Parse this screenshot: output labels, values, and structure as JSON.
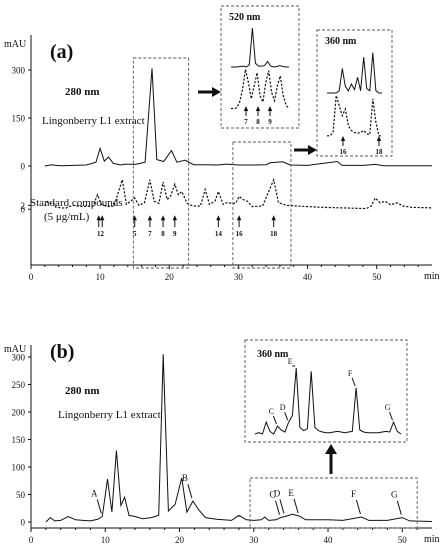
{
  "chart_data": [
    {
      "type": "line",
      "panel_label": "(a)",
      "yunit": "mAU",
      "x_unit": "min",
      "xlim": [
        0,
        58
      ],
      "xticks": [
        0,
        10,
        20,
        30,
        40,
        50
      ],
      "yticks": [
        0,
        150,
        300
      ],
      "ylim": [
        0,
        330
      ],
      "series": [
        {
          "name": "Lingonberry L1 extract",
          "wavelength": "280 nm",
          "offset": 0,
          "points": [
            [
              2,
              0
            ],
            [
              3,
              4
            ],
            [
              3.6,
              2
            ],
            [
              4.5,
              1
            ],
            [
              6,
              2
            ],
            [
              8,
              3
            ],
            [
              9.4,
              12
            ],
            [
              10,
              55
            ],
            [
              10.6,
              15
            ],
            [
              11.2,
              28
            ],
            [
              11.9,
              8
            ],
            [
              13,
              3
            ],
            [
              13.6,
              6
            ],
            [
              15,
              5
            ],
            [
              15.8,
              8
            ],
            [
              16.5,
              12
            ],
            [
              17.5,
              305
            ],
            [
              18.2,
              20
            ],
            [
              19.2,
              14
            ],
            [
              20.3,
              48
            ],
            [
              21.1,
              12
            ],
            [
              22.3,
              18
            ],
            [
              23.5,
              4
            ],
            [
              25,
              4
            ],
            [
              27,
              3
            ],
            [
              28.2,
              6
            ],
            [
              30,
              3
            ],
            [
              32,
              3
            ],
            [
              34,
              4
            ],
            [
              34.6,
              10
            ],
            [
              36.4,
              13
            ],
            [
              37.5,
              3
            ],
            [
              40,
              2
            ],
            [
              44.3,
              14
            ],
            [
              45,
              2
            ],
            [
              48,
              2
            ],
            [
              49.8,
              5
            ],
            [
              51,
              1
            ],
            [
              58,
              1
            ]
          ]
        },
        {
          "name": "Standard compounds (5 μg/mL)",
          "offset": -135,
          "points": [
            [
              2,
              10
            ],
            [
              2.4,
              24
            ],
            [
              2.8,
              18
            ],
            [
              3.2,
              20
            ],
            [
              3.6,
              6
            ],
            [
              5,
              3
            ],
            [
              6,
              12
            ],
            [
              7.5,
              8
            ],
            [
              9,
              10
            ],
            [
              9.6,
              45
            ],
            [
              10.2,
              15
            ],
            [
              11,
              8
            ],
            [
              12,
              10
            ],
            [
              13.2,
              92
            ],
            [
              13.8,
              15
            ],
            [
              15,
              35
            ],
            [
              15.6,
              12
            ],
            [
              16.4,
              20
            ],
            [
              17.2,
              92
            ],
            [
              17.8,
              25
            ],
            [
              18.5,
              18
            ],
            [
              19.1,
              85
            ],
            [
              19.7,
              30
            ],
            [
              20.2,
              42
            ],
            [
              20.8,
              78
            ],
            [
              21.3,
              45
            ],
            [
              21.8,
              55
            ],
            [
              22.6,
              18
            ],
            [
              23.4,
              10
            ],
            [
              24.5,
              10
            ],
            [
              25.2,
              62
            ],
            [
              25.8,
              15
            ],
            [
              26.6,
              25
            ],
            [
              27.1,
              55
            ],
            [
              27.8,
              15
            ],
            [
              28.2,
              20
            ],
            [
              29.6,
              18
            ],
            [
              30.1,
              40
            ],
            [
              30.7,
              30
            ],
            [
              31.3,
              25
            ],
            [
              32,
              8
            ],
            [
              33.5,
              10
            ],
            [
              35.1,
              92
            ],
            [
              35.8,
              20
            ],
            [
              37,
              12
            ],
            [
              40,
              8
            ],
            [
              42,
              6
            ],
            [
              45,
              4
            ],
            [
              48.5,
              2
            ],
            [
              49.2,
              10
            ],
            [
              49.8,
              35
            ],
            [
              50.5,
              20
            ],
            [
              51.2,
              25
            ],
            [
              52,
              14
            ],
            [
              53,
              20
            ],
            [
              53.8,
              10
            ],
            [
              55,
              6
            ],
            [
              58,
              4
            ]
          ]
        }
      ],
      "numbered_peaks": [
        {
          "label": "1",
          "x": 9.8
        },
        {
          "label": "2",
          "x": 10.3
        },
        {
          "label": "5",
          "x": 15
        },
        {
          "label": "7",
          "x": 17.2
        },
        {
          "label": "8",
          "x": 19.1
        },
        {
          "label": "9",
          "x": 20.8
        },
        {
          "label": "14",
          "x": 27.1
        },
        {
          "label": "16",
          "x": 30.1
        },
        {
          "label": "18",
          "x": 35.1
        }
      ],
      "insets": [
        {
          "title": "520 nm",
          "extract_trace": [
            0,
            0,
            0,
            1,
            2,
            0,
            5,
            85,
            8,
            2,
            2,
            3,
            12,
            2,
            0,
            1,
            3,
            1,
            0,
            0
          ],
          "standard_trace": [
            0,
            0,
            1,
            10,
            30,
            60,
            40,
            15,
            35,
            55,
            20,
            10,
            40,
            58,
            25,
            12,
            35,
            50,
            20,
            5,
            0
          ],
          "peak_labels": [
            "7",
            "8",
            "9"
          ]
        },
        {
          "title": "360 nm",
          "extract_trace": [
            0,
            0,
            0,
            0,
            2,
            22,
            6,
            2,
            8,
            3,
            14,
            2,
            32,
            4,
            2,
            36,
            2,
            0,
            0
          ],
          "standard_trace": [
            0,
            0,
            5,
            60,
            45,
            30,
            40,
            15,
            8,
            5,
            4,
            5,
            8,
            3,
            2,
            55,
            20,
            0,
            0
          ],
          "peak_labels": [
            "16",
            "18"
          ]
        }
      ]
    },
    {
      "type": "line",
      "panel_label": "(b)",
      "yunit": "mAU",
      "x_unit": "min",
      "xlim": [
        0,
        54
      ],
      "xticks": [
        0,
        10,
        20,
        30,
        40,
        50
      ],
      "yticks": [
        0,
        50,
        100,
        150,
        200,
        250,
        300
      ],
      "ylim": [
        0,
        320
      ],
      "series": [
        {
          "name": "Lingonberry L1 extract",
          "wavelength": "280 nm",
          "points": [
            [
              2,
              0
            ],
            [
              2.6,
              8
            ],
            [
              3.2,
              2
            ],
            [
              4,
              3
            ],
            [
              5,
              10
            ],
            [
              6,
              4
            ],
            [
              7,
              3
            ],
            [
              8,
              2
            ],
            [
              9,
              5
            ],
            [
              9.6,
              10
            ],
            [
              10.3,
              78
            ],
            [
              10.9,
              18
            ],
            [
              11.5,
              130
            ],
            [
              12.1,
              30
            ],
            [
              12.6,
              45
            ],
            [
              13.2,
              12
            ],
            [
              14,
              10
            ],
            [
              15,
              6
            ],
            [
              16.2,
              8
            ],
            [
              17.2,
              12
            ],
            [
              17.8,
              305
            ],
            [
              18.5,
              20
            ],
            [
              19.4,
              32
            ],
            [
              20.3,
              80
            ],
            [
              21,
              18
            ],
            [
              21.8,
              38
            ],
            [
              22.6,
              22
            ],
            [
              23.5,
              8
            ],
            [
              25,
              5
            ],
            [
              27,
              3
            ],
            [
              28,
              12
            ],
            [
              29,
              4
            ],
            [
              30,
              3
            ],
            [
              31,
              4
            ],
            [
              31.5,
              9
            ],
            [
              32,
              3
            ],
            [
              33,
              4
            ],
            [
              33.6,
              8
            ],
            [
              34.2,
              10
            ],
            [
              35.2,
              14
            ],
            [
              36.1,
              11
            ],
            [
              37,
              4
            ],
            [
              40,
              4
            ],
            [
              42,
              3
            ],
            [
              44.5,
              9
            ],
            [
              45.5,
              3
            ],
            [
              48,
              3
            ],
            [
              50,
              8
            ],
            [
              51,
              2
            ],
            [
              54,
              1
            ]
          ]
        }
      ],
      "peak_letters": [
        {
          "label": "A",
          "x": 9.6
        },
        {
          "label": "B",
          "x": 21.8
        },
        {
          "label": "C",
          "x": 33.6
        },
        {
          "label": "D",
          "x": 34.2
        },
        {
          "label": "E",
          "x": 36.1
        },
        {
          "label": "F",
          "x": 44.5
        },
        {
          "label": "G",
          "x": 50
        }
      ],
      "inset": {
        "title": "360 nm",
        "trace": [
          0,
          2,
          0,
          18,
          4,
          0,
          12,
          6,
          3,
          18,
          28,
          100,
          10,
          5,
          8,
          95,
          10,
          5,
          3,
          2,
          2,
          3,
          4,
          3,
          2,
          3,
          4,
          70,
          6,
          3,
          2,
          2,
          2,
          2,
          3,
          4,
          3,
          18,
          4,
          0
        ],
        "peak_labels": [
          "C",
          "D",
          "E",
          "F",
          "G"
        ]
      }
    }
  ]
}
